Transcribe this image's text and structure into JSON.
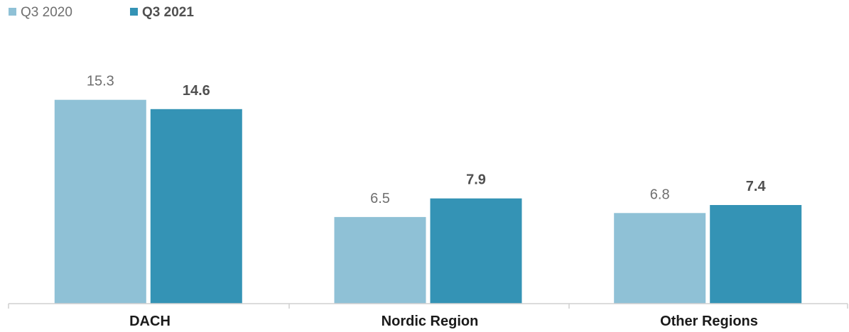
{
  "colors": {
    "q3_2020": "#8fc1d6",
    "q3_2021": "#3493b5",
    "axis": "#d0d0d0"
  },
  "chart_data": {
    "type": "bar",
    "categories": [
      "DACH",
      "Nordic Region",
      "Other Regions"
    ],
    "series": [
      {
        "name": "Q3 2020",
        "values": [
          15.3,
          6.5,
          6.8
        ],
        "labels": [
          "15.3",
          "6.5",
          "6.8"
        ]
      },
      {
        "name": "Q3 2021",
        "values": [
          14.6,
          7.9,
          7.4
        ],
        "labels": [
          "14.6",
          "7.9",
          "7.4"
        ]
      }
    ],
    "ylim": [
      0,
      18
    ],
    "legend_position": "top-left",
    "grid": false,
    "title": "",
    "xlabel": "",
    "ylabel": ""
  }
}
